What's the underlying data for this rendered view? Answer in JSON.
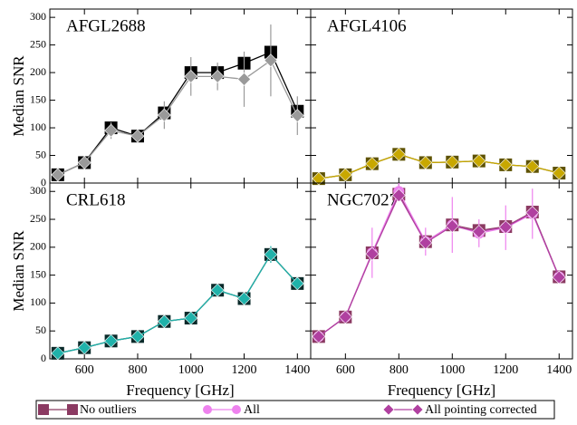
{
  "chart_data": [
    {
      "type": "line",
      "title": "AFGL2688",
      "title_color": "#999999",
      "ylabel": "Median SNR",
      "x": [
        500,
        600,
        700,
        800,
        900,
        1000,
        1100,
        1200,
        1300,
        1400
      ],
      "xlim": [
        470,
        1450
      ],
      "ylim": [
        0,
        315
      ],
      "yticks": [
        0,
        50,
        100,
        150,
        200,
        250,
        300
      ],
      "series": [
        {
          "name": "No outliers",
          "color": "#000000",
          "marker": "square",
          "values": [
            15,
            37,
            100,
            85,
            127,
            200,
            200,
            217,
            237,
            130
          ]
        },
        {
          "name": "All",
          "color": "#9a9a9a",
          "marker": "diamond",
          "values": [
            15,
            37,
            95,
            85,
            123,
            193,
            193,
            188,
            222,
            122
          ],
          "errors": [
            3,
            5,
            15,
            8,
            25,
            35,
            25,
            50,
            65,
            35
          ]
        }
      ]
    },
    {
      "type": "line",
      "title": "AFGL4106",
      "title_color": "#a08c00",
      "x": [
        500,
        600,
        700,
        800,
        900,
        1000,
        1100,
        1200,
        1300,
        1400
      ],
      "xlim": [
        470,
        1450
      ],
      "ylim": [
        0,
        315
      ],
      "series": [
        {
          "name": "No outliers",
          "color": "#5e5200",
          "marker": "square",
          "values": [
            8,
            15,
            35,
            52,
            37,
            38,
            40,
            33,
            30,
            18
          ]
        },
        {
          "name": "All",
          "color": "#c8a800",
          "marker": "diamond",
          "values": [
            8,
            15,
            35,
            52,
            37,
            38,
            40,
            33,
            30,
            18
          ]
        }
      ]
    },
    {
      "type": "line",
      "title": "CRL618",
      "title_color": "#008080",
      "ylabel": "Median SNR",
      "xlabel": "Frequency [GHz]",
      "x": [
        500,
        600,
        700,
        800,
        900,
        1000,
        1100,
        1200,
        1300,
        1400
      ],
      "xlim": [
        470,
        1450
      ],
      "ylim": [
        0,
        315
      ],
      "yticks": [
        0,
        50,
        100,
        150,
        200,
        250,
        300
      ],
      "xticks": [
        600,
        800,
        1000,
        1200,
        1400
      ],
      "series": [
        {
          "name": "No outliers",
          "color": "#0a2a2a",
          "marker": "square",
          "values": [
            10,
            20,
            32,
            40,
            67,
            73,
            123,
            108,
            187,
            135
          ]
        },
        {
          "name": "All",
          "color": "#20b2aa",
          "marker": "diamond",
          "values": [
            10,
            20,
            32,
            40,
            67,
            73,
            123,
            108,
            187,
            135
          ],
          "errors": [
            2,
            3,
            3,
            4,
            5,
            5,
            6,
            6,
            15,
            8
          ]
        }
      ]
    },
    {
      "type": "line",
      "title": "NGC7027",
      "title_color": "#c050b0",
      "xlabel": "Frequency [GHz]",
      "x": [
        500,
        600,
        700,
        800,
        900,
        1000,
        1100,
        1200,
        1300,
        1400
      ],
      "xlim": [
        470,
        1450
      ],
      "ylim": [
        0,
        315
      ],
      "xticks": [
        600,
        800,
        1000,
        1200,
        1400
      ],
      "series": [
        {
          "name": "No outliers",
          "color": "#8b3a62",
          "marker": "square",
          "values": [
            40,
            75,
            190,
            295,
            210,
            240,
            230,
            237,
            263,
            147
          ]
        },
        {
          "name": "All",
          "color": "#ee82ee",
          "marker": "circle",
          "values": [
            40,
            75,
            190,
            300,
            210,
            240,
            225,
            235,
            260,
            147
          ],
          "errors": [
            10,
            10,
            45,
            15,
            25,
            50,
            25,
            40,
            45,
            12
          ]
        },
        {
          "name": "All pointing corrected",
          "color": "#b040a0",
          "marker": "diamond",
          "values": [
            40,
            75,
            188,
            293,
            208,
            238,
            228,
            236,
            262,
            146
          ]
        }
      ]
    }
  ]
}
